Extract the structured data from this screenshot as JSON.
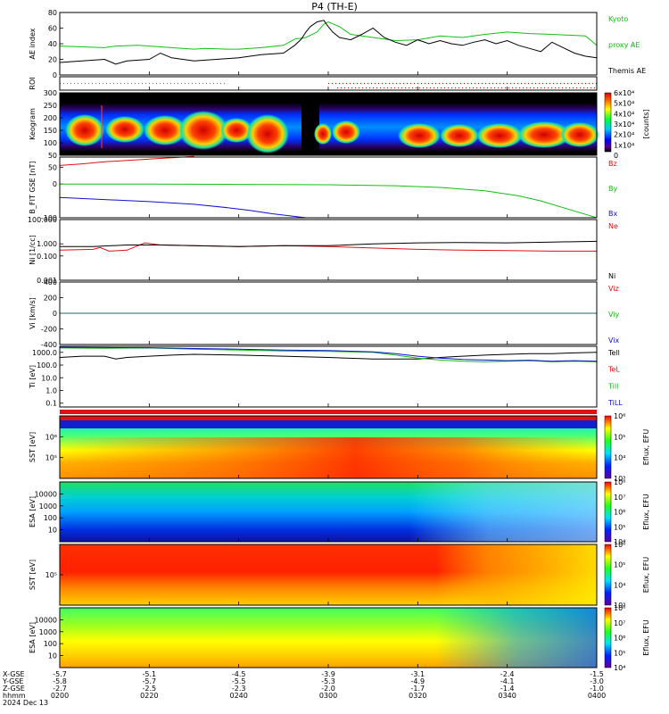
{
  "chart_data": {
    "type": "line",
    "title": "P4  (TH-E)",
    "colors": {
      "red": "#e01010",
      "green": "#10c010",
      "blue": "#1010d0",
      "black": "#000000"
    },
    "x_axis": {
      "ticks": [
        "0200",
        "0220",
        "0240",
        "0300",
        "0320",
        "0340",
        "0400"
      ],
      "row_labels": [
        "X-GSE",
        "Y-GSE",
        "Z-GSE",
        "hhmm",
        "2024 Dec 13"
      ],
      "x_gse": [
        "-5.7",
        "-5.1",
        "-4.5",
        "-3.9",
        "-3.1",
        "-2.4",
        "-1.5"
      ],
      "y_gse": [
        "-5.8",
        "-5.7",
        "-5.5",
        "-5.3",
        "-4.9",
        "-4.1",
        "-3.0"
      ],
      "z_gse": [
        "-2.7",
        "-2.5",
        "-2.3",
        "-2.0",
        "-1.7",
        "-1.4",
        "-1.0"
      ]
    },
    "panels": [
      {
        "id": "ae",
        "ylabel": "AE index",
        "yticks": [
          "0",
          "20",
          "40",
          "60",
          "80"
        ],
        "ylim": [
          0,
          80
        ],
        "legend": [
          {
            "text": "Kyoto",
            "color": "#10c010"
          },
          {
            "text": "proxy AE",
            "color": "#10c010"
          },
          {
            "text": "Themis AE",
            "color": "#000000"
          }
        ],
        "series": [
          {
            "name": "proxy AE",
            "color": "#10c010",
            "x": [
              0,
              10,
              20,
              25,
              35,
              50,
              60,
              65,
              75,
              80,
              90,
              100,
              105,
              110,
              115,
              118,
              120,
              125,
              130,
              140,
              150,
              160,
              170,
              180,
              190,
              200,
              210,
              220,
              235,
              240
            ],
            "y": [
              37,
              36,
              35,
              37,
              38,
              35,
              33,
              34,
              33,
              33,
              35,
              38,
              46,
              48,
              55,
              65,
              68,
              62,
              52,
              48,
              44,
              45,
              50,
              48,
              52,
              55,
              53,
              52,
              50,
              38
            ]
          },
          {
            "name": "Themis AE",
            "color": "#000000",
            "x": [
              0,
              10,
              20,
              25,
              30,
              40,
              45,
              50,
              60,
              70,
              80,
              90,
              100,
              105,
              108,
              110,
              112,
              115,
              118,
              120,
              122,
              125,
              130,
              135,
              140,
              145,
              150,
              155,
              160,
              165,
              170,
              175,
              180,
              185,
              190,
              195,
              200,
              205,
              210,
              215,
              220,
              225,
              230,
              235,
              240
            ],
            "y": [
              16,
              18,
              20,
              14,
              18,
              20,
              28,
              22,
              18,
              20,
              22,
              26,
              28,
              38,
              46,
              55,
              62,
              68,
              70,
              62,
              55,
              48,
              45,
              52,
              60,
              48,
              42,
              38,
              45,
              40,
              44,
              40,
              38,
              42,
              45,
              40,
              44,
              38,
              34,
              30,
              42,
              35,
              28,
              24,
              22
            ]
          }
        ]
      },
      {
        "id": "roi",
        "ylabel": "ROI",
        "segments": [
          {
            "x0": 0,
            "x1": 75,
            "color": "#10c010"
          },
          {
            "x0": 120,
            "x1": 240,
            "color": "#e01010"
          }
        ]
      },
      {
        "id": "keogram",
        "ylabel": "Keogram",
        "yticks": [
          "50",
          "100",
          "150",
          "200",
          "250",
          "300"
        ],
        "ylim": [
          50,
          300
        ],
        "colorbar": {
          "ticks": [
            "0",
            "1x10^4",
            "2x10^4",
            "3x10^4",
            "4x10^4",
            "5x10^4",
            "6x10^4"
          ],
          "label": "[counts]"
        }
      },
      {
        "id": "bfield",
        "ylabel": "B_FIT GSE [nT]",
        "yticks": [
          "-100",
          "0",
          "50"
        ],
        "ylim": [
          -100,
          80
        ],
        "legend": [
          {
            "text": "Bz",
            "color": "#e01010"
          },
          {
            "text": "By",
            "color": "#10c010"
          },
          {
            "text": "Bx",
            "color": "#1010d0"
          }
        ],
        "series": [
          {
            "name": "Bz",
            "color": "#e01010",
            "x": [
              0,
              10,
              20,
              30,
              40,
              50,
              60
            ],
            "y": [
              55,
              60,
              66,
              70,
              74,
              78,
              82
            ]
          },
          {
            "name": "By",
            "color": "#10c010",
            "x": [
              0,
              40,
              80,
              120,
              150,
              170,
              190,
              205,
              215,
              225,
              235,
              240
            ],
            "y": [
              0,
              0,
              -1,
              -2,
              -5,
              -10,
              -20,
              -35,
              -50,
              -70,
              -90,
              -100
            ]
          },
          {
            "name": "Bx",
            "color": "#1010d0",
            "x": [
              0,
              20,
              40,
              60,
              75,
              85,
              95,
              105,
              110
            ],
            "y": [
              -40,
              -46,
              -52,
              -60,
              -70,
              -78,
              -88,
              -96,
              -100
            ]
          }
        ]
      },
      {
        "id": "density",
        "ylabel": "Ni  [1/cc]",
        "yticks": [
          "0.001",
          "0.100",
          "1.000",
          "100.000"
        ],
        "scale": "log",
        "ylim": [
          0.001,
          100
        ],
        "legend": [
          {
            "text": "Ne",
            "color": "#e01010"
          },
          {
            "text": "Ni",
            "color": "#000000"
          }
        ],
        "series": [
          {
            "name": "Ne",
            "color": "#e01010",
            "x": [
              0,
              15,
              18,
              22,
              30,
              38,
              45,
              60,
              80,
              100,
              120,
              140,
              160,
              180,
              200,
              220,
              240
            ],
            "y": [
              0.3,
              0.35,
              0.5,
              0.25,
              0.3,
              1.2,
              0.8,
              0.7,
              0.6,
              0.7,
              0.6,
              0.45,
              0.35,
              0.3,
              0.28,
              0.25,
              0.25
            ]
          },
          {
            "name": "Ni",
            "color": "#000000",
            "x": [
              0,
              15,
              30,
              45,
              60,
              80,
              100,
              120,
              140,
              160,
              180,
              200,
              220,
              240
            ],
            "y": [
              0.6,
              0.6,
              0.8,
              0.8,
              0.7,
              0.6,
              0.7,
              0.7,
              1.0,
              1.2,
              1.3,
              1.2,
              1.4,
              1.6
            ]
          }
        ]
      },
      {
        "id": "velocity",
        "ylabel": "Vi  [km/s]",
        "yticks": [
          "-400",
          "-200",
          "0",
          "200",
          "400"
        ],
        "ylim": [
          -400,
          400
        ],
        "legend": [
          {
            "text": "Viz",
            "color": "#e01010"
          },
          {
            "text": "Viy",
            "color": "#10c010"
          },
          {
            "text": "Vix",
            "color": "#1010d0"
          }
        ],
        "series": [
          {
            "name": "Viz",
            "color": "#e01010",
            "x": [
              0,
              240
            ],
            "y": [
              0,
              0
            ]
          },
          {
            "name": "Viy",
            "color": "#10c010",
            "x": [
              0,
              240
            ],
            "y": [
              0,
              0
            ]
          },
          {
            "name": "Vix",
            "color": "#1010d0",
            "x": [
              0,
              240
            ],
            "y": [
              0,
              0
            ]
          }
        ]
      },
      {
        "id": "temperature",
        "ylabel": "Ti  [eV]",
        "yticks": [
          "0.1",
          "1.0",
          "10.0",
          "100.0",
          "1000.0"
        ],
        "scale": "log",
        "ylim": [
          0.05,
          3000
        ],
        "legend": [
          {
            "text": "Tell",
            "color": "#000000"
          },
          {
            "text": "TeL",
            "color": "#e01010"
          },
          {
            "text": "Till",
            "color": "#10c010"
          },
          {
            "text": "TiLL",
            "color": "#1010d0"
          }
        ],
        "series": [
          {
            "name": "Tell",
            "color": "#000000",
            "x": [
              0,
              10,
              20,
              25,
              30,
              40,
              50,
              60,
              80,
              100,
              120,
              140,
              150,
              160,
              170,
              180,
              190,
              200,
              210,
              220,
              230,
              240
            ],
            "y": [
              400,
              500,
              500,
              300,
              400,
              500,
              600,
              700,
              600,
              500,
              400,
              300,
              300,
              300,
              400,
              500,
              600,
              700,
              800,
              800,
              900,
              1000
            ]
          },
          {
            "name": "Till",
            "color": "#10c010",
            "x": [
              0,
              20,
              40,
              60,
              80,
              100,
              120,
              140,
              150,
              160,
              170,
              180,
              190,
              200,
              210,
              220,
              230,
              240
            ],
            "y": [
              2200,
              2100,
              2200,
              1800,
              1500,
              1300,
              1200,
              1000,
              600,
              350,
              250,
              200,
              180,
              200,
              220,
              180,
              200,
              180
            ]
          },
          {
            "name": "TiLL",
            "color": "#1010d0",
            "x": [
              0,
              20,
              40,
              60,
              80,
              100,
              120,
              140,
              150,
              160,
              170,
              180,
              190,
              200,
              210,
              220,
              230,
              240
            ],
            "y": [
              2500,
              2400,
              2300,
              2000,
              1800,
              1500,
              1400,
              1100,
              800,
              500,
              350,
              280,
              250,
              220,
              240,
              200,
              220,
              200
            ]
          }
        ]
      },
      {
        "id": "sst_i",
        "ylabel": "SST  [eV]",
        "yticks": [
          "10^5",
          "10^6"
        ],
        "colorbar": {
          "ticks": [
            "10^3",
            "10^4",
            "10^5",
            "10^6"
          ],
          "label": "Eflux, EFU"
        }
      },
      {
        "id": "esa_i",
        "ylabel": "ESA  [eV]",
        "yticks": [
          "10",
          "100",
          "1000",
          "10000"
        ],
        "colorbar": {
          "ticks": [
            "10^4",
            "10^5",
            "10^6",
            "10^7",
            "10^8"
          ],
          "label": "Eflux, EFU"
        }
      },
      {
        "id": "sst_e",
        "ylabel": "SST  [eV]",
        "yticks": [
          "10^5"
        ],
        "colorbar": {
          "ticks": [
            "10^3",
            "10^4",
            "10^5",
            "10^6"
          ],
          "label": "Eflux, EFU"
        }
      },
      {
        "id": "esa_e",
        "ylabel": "ESA  [eV]",
        "yticks": [
          "10",
          "100",
          "1000",
          "10000"
        ],
        "colorbar": {
          "ticks": [
            "10^4",
            "10^5",
            "10^6",
            "10^7",
            "10^8"
          ],
          "label": "Eflux, EFU"
        }
      }
    ]
  }
}
